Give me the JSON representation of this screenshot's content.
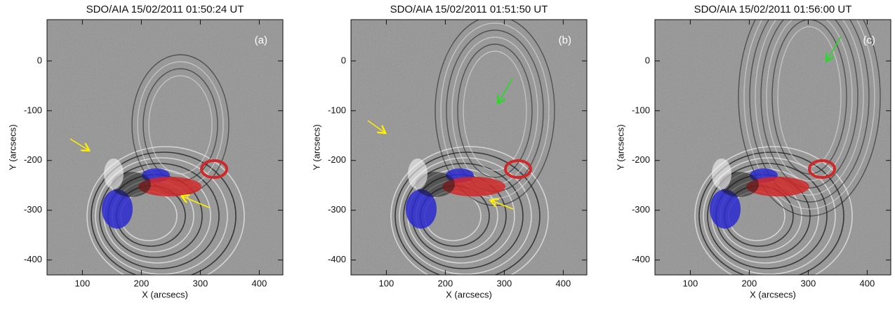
{
  "chart_data": [
    {
      "type": "image",
      "title": "SDO/AIA 15/02/2011 01:50:24 UT",
      "label": "(a)",
      "xlabel": "X (arcsecs)",
      "ylabel": "Y (arcsecs)",
      "xlim": [
        40,
        440
      ],
      "ylim": [
        -430,
        83
      ],
      "xticks": [
        100,
        200,
        300,
        400
      ],
      "yticks": [
        0,
        -100,
        -200,
        -300,
        -400
      ]
    },
    {
      "type": "image",
      "title": "SDO/AIA 15/02/2011 01:51:50 UT",
      "label": "(b)",
      "xlabel": "X (arcsecs)",
      "ylabel": "Y (arcsecs)",
      "xlim": [
        40,
        440
      ],
      "ylim": [
        -430,
        83
      ],
      "xticks": [
        100,
        200,
        300,
        400
      ],
      "yticks": [
        0,
        -100,
        -200,
        -300,
        -400
      ]
    },
    {
      "type": "image",
      "title": "SDO/AIA 15/02/2011 01:56:00 UT",
      "label": "(c)",
      "xlabel": "X (arcsecs)",
      "ylabel": "Y (arcsecs)",
      "xlim": [
        40,
        440
      ],
      "ylim": [
        -430,
        83
      ],
      "xticks": [
        100,
        200,
        300,
        400
      ],
      "yticks": [
        0,
        -100,
        -200,
        -300,
        -400
      ]
    }
  ]
}
